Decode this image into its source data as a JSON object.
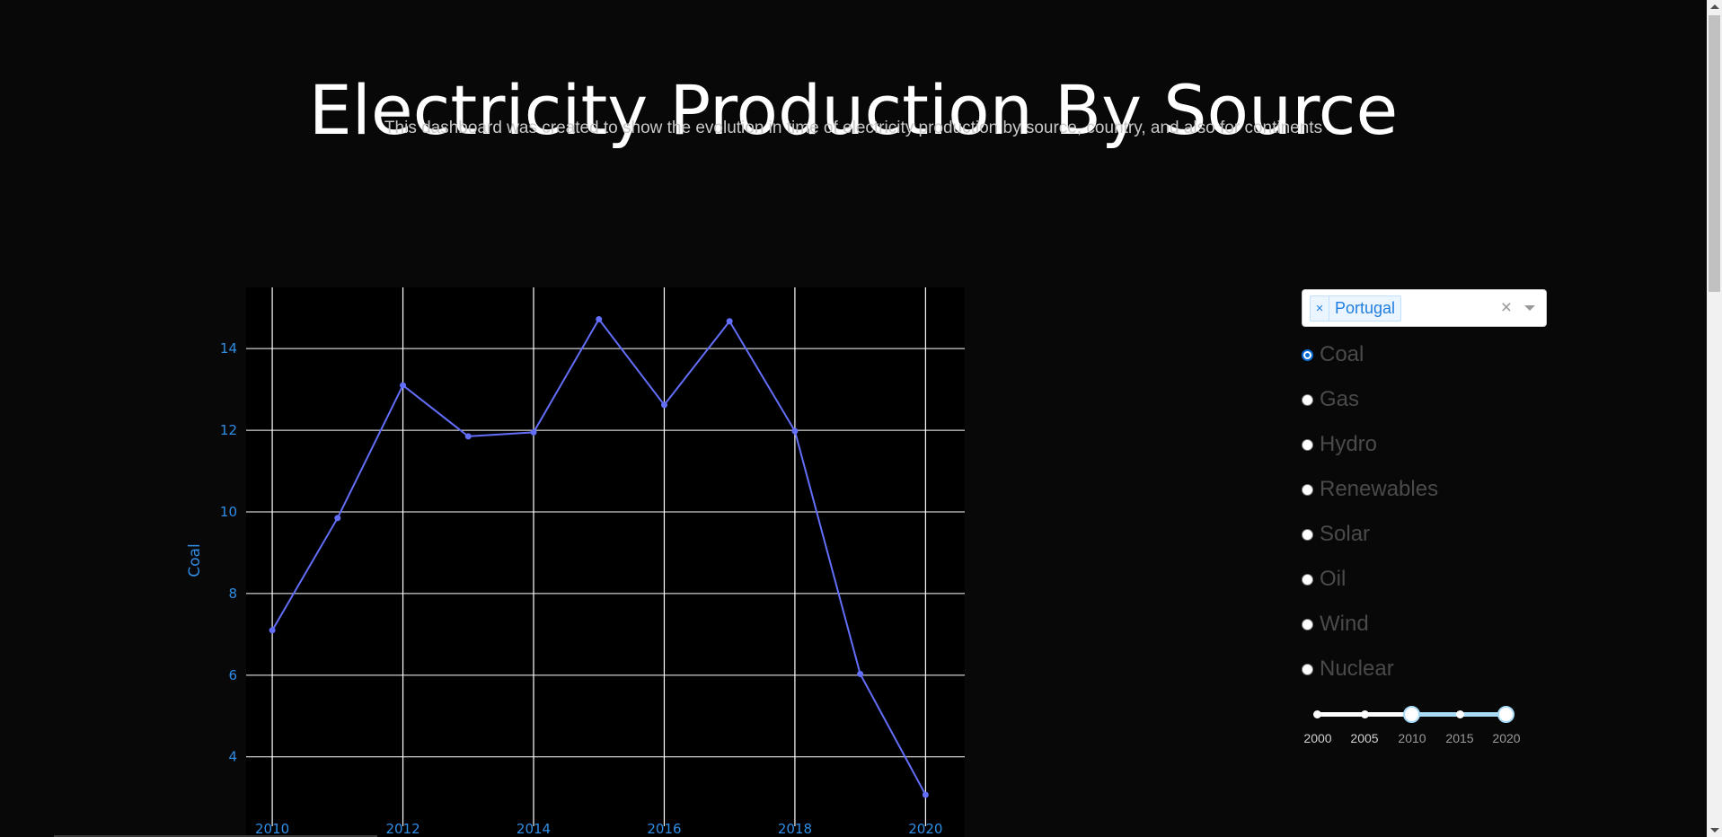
{
  "header": {
    "title": "Electricity Production By Source",
    "subtitle": "This dashboard was created to show the evolution in time of electricity production by source, country, and also for continents"
  },
  "country_dropdown": {
    "selected_tags": [
      "Portugal"
    ],
    "tag_remove_glyph": "×",
    "clear_glyph": "×"
  },
  "source_radio": {
    "selected": "Coal",
    "options": [
      "Coal",
      "Gas",
      "Hydro",
      "Renewables",
      "Solar",
      "Oil",
      "Wind",
      "Nuclear"
    ]
  },
  "year_slider": {
    "marks": [
      "2000",
      "2005",
      "2010",
      "2015",
      "2020"
    ],
    "range": [
      2010,
      2020
    ]
  },
  "colors": {
    "line": "#636efa",
    "axis_text": "#2f8de4",
    "grid": "#ffffff",
    "plot_bg": "#000000",
    "page_bg": "#080808"
  },
  "chart_data": {
    "type": "line",
    "ylabel": "Coal",
    "x": [
      2010,
      2011,
      2012,
      2013,
      2014,
      2015,
      2016,
      2017,
      2018,
      2019,
      2020
    ],
    "values": [
      7.1,
      9.85,
      13.1,
      11.85,
      11.95,
      14.72,
      12.62,
      14.67,
      11.98,
      6.03,
      3.07
    ],
    "x_ticks": [
      2010,
      2012,
      2014,
      2016,
      2018,
      2020
    ],
    "y_ticks": [
      4,
      6,
      8,
      10,
      12,
      14
    ],
    "xlim": [
      2009.6,
      2020.6
    ],
    "ylim": [
      2.3,
      15.5
    ],
    "grid": true
  }
}
